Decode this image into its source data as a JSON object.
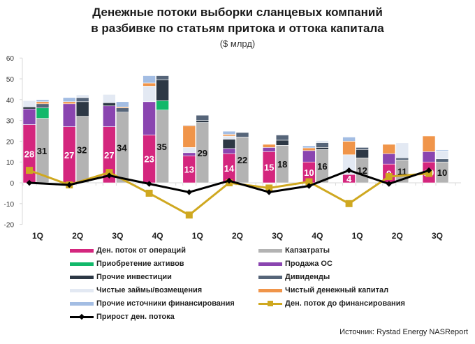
{
  "header": {
    "title_line1": "Денежные потоки выборки сланцевых компаний",
    "title_line2": "в разбивке по статьям притока и оттока капитала",
    "subtitle": "($ млрд)"
  },
  "source": "Источник: Rystad Energy NASReport",
  "chart_data": {
    "type": "bar",
    "stacked": true,
    "title": "Денежные потоки выборки сланцевых компаний в разбивке по статьям притока и оттока капитала",
    "subtitle": "($ млрд)",
    "xlabel": "",
    "ylabel": "",
    "ylim": [
      -20,
      60
    ],
    "yticks": [
      60,
      50,
      40,
      30,
      20,
      10,
      0,
      -10,
      -20
    ],
    "grid": false,
    "legend_position": "bottom",
    "categories": [
      "1Q",
      "2Q",
      "3Q",
      "4Q",
      "1Q",
      "2Q",
      "3Q",
      "4Q",
      "1Q",
      "2Q",
      "3Q"
    ],
    "colors": {
      "operations": "#d4267e",
      "capex": "#b3b3b3",
      "acquisitions": "#12b86a",
      "asset_sales": "#8a45b0",
      "other_investments": "#2d3845",
      "dividends": "#566579",
      "net_borrowing": "#e3e9f3",
      "net_equity": "#f0954a",
      "other_financing": "#a3bde3",
      "fcf": "#cfa820",
      "net_change": "#000000"
    },
    "inflow_stack": {
      "order": [
        "operations",
        "asset_sales",
        "other_investments",
        "net_borrowing",
        "net_equity",
        "other_financing"
      ],
      "series": [
        {
          "key": "operations",
          "name": "Ден. поток от операций",
          "values": [
            28,
            27,
            27,
            23,
            13,
            14,
            15,
            10,
            4,
            9,
            10
          ]
        },
        {
          "key": "asset_sales",
          "name": "Продажа ОС",
          "values": [
            7.5,
            11,
            10,
            16,
            1.5,
            2.5,
            2,
            5.5,
            0,
            5,
            5
          ]
        },
        {
          "key": "other_investments",
          "name": "Прочие инвестиции",
          "values": [
            1,
            0,
            1.5,
            0,
            0,
            4.5,
            0,
            0,
            0,
            0,
            0
          ]
        },
        {
          "key": "net_borrowing",
          "name": "Чистые займы/возмещения",
          "values": [
            3,
            0,
            4,
            7.5,
            2.5,
            1.5,
            0,
            0,
            9.5,
            0,
            0
          ]
        },
        {
          "key": "net_equity",
          "name": "Чистый денежный капитал",
          "values": [
            0,
            1,
            0,
            1.5,
            10.5,
            0.8,
            1.5,
            1.3,
            6.5,
            4.5,
            7.5
          ]
        },
        {
          "key": "other_financing",
          "name": "Прочие источники финансирования",
          "values": [
            0,
            2,
            0,
            3.5,
            0.3,
            1.5,
            0,
            1,
            2,
            0,
            0
          ]
        }
      ]
    },
    "outflow_stack": {
      "order": [
        "capex",
        "acquisitions",
        "other_investments",
        "dividends",
        "net_equity",
        "net_borrowing",
        "other_financing"
      ],
      "series": [
        {
          "key": "capex",
          "name": "Капзатраты",
          "values": [
            31,
            32,
            34,
            35,
            29,
            22,
            18,
            16,
            12,
            11,
            10
          ]
        },
        {
          "key": "acquisitions",
          "name": "Приобретение активов",
          "values": [
            5,
            0,
            0,
            4.5,
            0,
            0,
            0,
            0,
            0,
            0,
            0
          ]
        },
        {
          "key": "other_investments",
          "name": "Прочие инвестиции",
          "values": [
            0,
            7,
            0,
            10,
            1,
            0,
            2.5,
            1,
            4,
            0,
            0
          ]
        },
        {
          "key": "dividends",
          "name": "Дивиденды",
          "values": [
            2,
            2,
            2,
            2,
            2.5,
            2.2,
            2.5,
            2.3,
            1,
            1,
            1.5
          ]
        },
        {
          "key": "net_equity",
          "name": "Чистый денежный капитал",
          "values": [
            1,
            0,
            0.5,
            0,
            0,
            0,
            0,
            0,
            0,
            0,
            0
          ]
        },
        {
          "key": "net_borrowing",
          "name": "Чистые займы/возмещения",
          "values": [
            0,
            1.3,
            0,
            0,
            0,
            0,
            0.3,
            1,
            0,
            7.2,
            3.8
          ]
        },
        {
          "key": "other_financing",
          "name": "Прочие источники финансирования",
          "values": [
            1,
            0,
            2.5,
            0,
            0,
            0,
            0,
            0,
            0,
            0,
            0.5
          ]
        }
      ]
    },
    "bar_labels": {
      "operations": [
        "28",
        "27",
        "27",
        "23",
        "13",
        "14",
        "15",
        "10",
        "4",
        "9",
        "10"
      ],
      "capex": [
        "31",
        "32",
        "34",
        "35",
        "29",
        "22",
        "18",
        "16",
        "12",
        "11",
        "10"
      ]
    },
    "lines": [
      {
        "key": "fcf",
        "name": "Ден. поток до финансирования",
        "marker": "square",
        "values": [
          6,
          -1,
          5,
          -5,
          -15.5,
          0,
          -2.5,
          0.5,
          -10,
          3,
          4.5
        ]
      },
      {
        "key": "net_change",
        "name": "Прирост ден. потока",
        "marker": "diamond",
        "values": [
          0,
          -1,
          3.5,
          -0.5,
          -4.5,
          1,
          -4.5,
          -1.5,
          6,
          -0.5,
          6
        ]
      }
    ]
  },
  "legend": {
    "items": [
      {
        "key": "operations",
        "label": "Ден. поток от операций",
        "type": "bar"
      },
      {
        "key": "capex",
        "label": "Капзатраты",
        "type": "bar"
      },
      {
        "key": "acquisitions",
        "label": "Приобретение активов",
        "type": "bar"
      },
      {
        "key": "asset_sales",
        "label": "Продажа ОС",
        "type": "bar"
      },
      {
        "key": "other_investments",
        "label": "Прочие инвестиции",
        "type": "bar"
      },
      {
        "key": "dividends",
        "label": "Дивиденды",
        "type": "bar"
      },
      {
        "key": "net_borrowing",
        "label": "Чистые займы/возмещения",
        "type": "bar"
      },
      {
        "key": "net_equity",
        "label": "Чистый денежный капитал",
        "type": "bar"
      },
      {
        "key": "other_financing",
        "label": "Прочие источники финансирования",
        "type": "bar"
      },
      {
        "key": "fcf",
        "label": "Ден. поток до финансирования",
        "type": "line-square"
      },
      {
        "key": "net_change",
        "label": "Прирост ден. потока",
        "type": "line-diamond"
      }
    ]
  }
}
